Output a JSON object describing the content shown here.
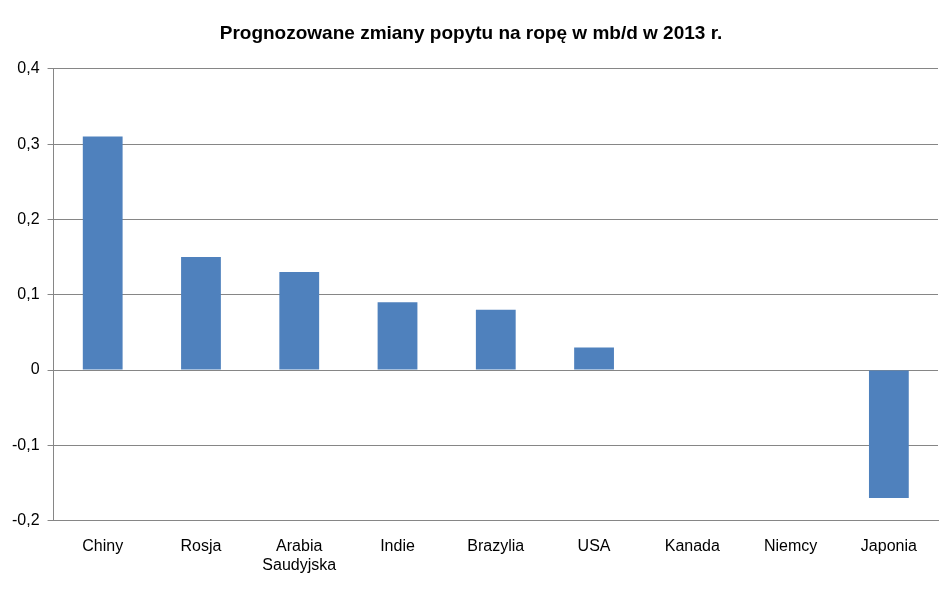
{
  "chart_data": {
    "type": "bar",
    "title": "Prognozowane zmiany popytu na ropę w mb/d w 2013 r.",
    "categories": [
      "Chiny",
      "Rosja",
      "Arabia Saudyjska",
      "Indie",
      "Brazylia",
      "USA",
      "Kanada",
      "Niemcy",
      "Japonia"
    ],
    "values": [
      0.31,
      0.15,
      0.13,
      0.09,
      0.08,
      0.03,
      0,
      0,
      -0.17
    ],
    "color": "#4f81bd",
    "ylim": [
      -0.2,
      0.4
    ],
    "yticks": [
      {
        "value": -0.2,
        "label": "-0,2"
      },
      {
        "value": -0.1,
        "label": "-0,1"
      },
      0,
      {
        "value": 0.1,
        "label": "0,1"
      },
      {
        "value": 0.2,
        "label": "0,2"
      },
      {
        "value": 0.3,
        "label": "0,3"
      },
      {
        "value": 0.4,
        "label": "0,4"
      }
    ],
    "grid": true
  }
}
